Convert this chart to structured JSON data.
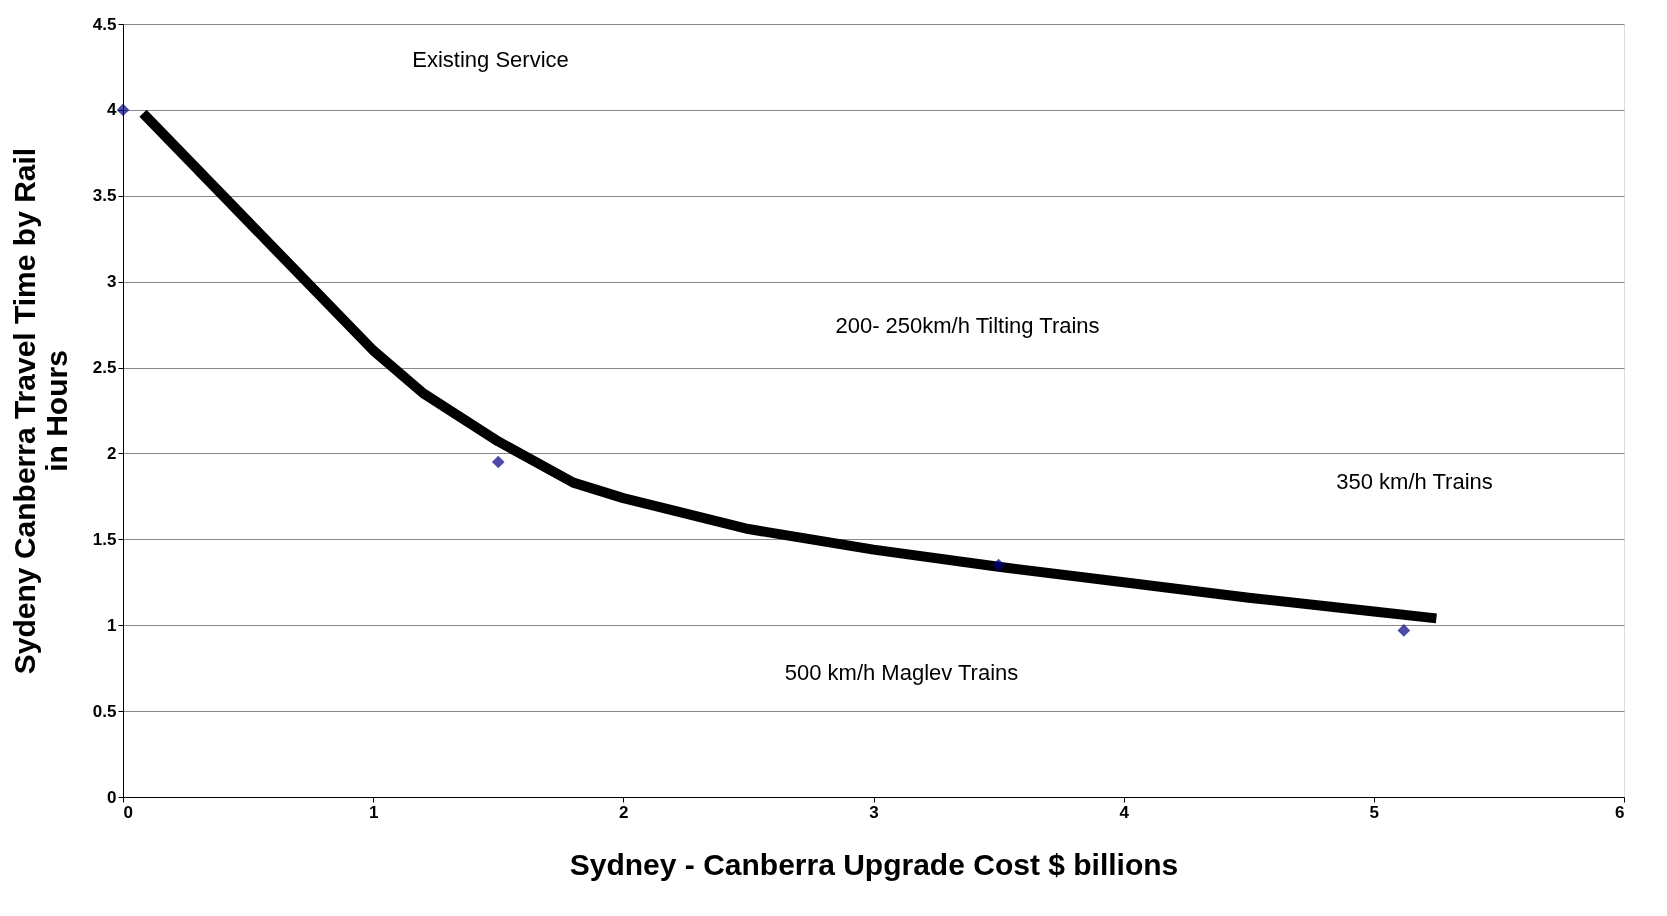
{
  "chart_data": {
    "type": "scatter",
    "xlabel": "Sydney - Canberra Upgrade Cost $ billions",
    "ylabel": "Sydeny Canberra Travel Time by Rail in Hours",
    "x": [
      0,
      1.5,
      3.5,
      5.12
    ],
    "series": [
      {
        "type": "scatter",
        "color": "#000080",
        "marker": "diamond",
        "values": [
          4.0,
          1.95,
          1.35,
          0.97
        ]
      },
      {
        "type": "line",
        "color": "#000000",
        "marker": "none",
        "x": [
          0.08,
          0.5,
          1.0,
          1.2,
          1.5,
          1.8,
          2.0,
          2.5,
          3.0,
          3.5,
          4.0,
          4.5,
          5.0,
          5.25
        ],
        "values": [
          3.98,
          3.35,
          2.6,
          2.35,
          2.07,
          1.83,
          1.74,
          1.56,
          1.44,
          1.34,
          1.25,
          1.16,
          1.08,
          1.04
        ]
      }
    ],
    "xlim": [
      0,
      6
    ],
    "xticks": [
      0,
      1,
      2,
      3,
      4,
      5,
      6
    ],
    "ylim": [
      0,
      4.5
    ],
    "yticks": [
      0,
      0.5,
      1,
      1.5,
      2,
      2.5,
      3,
      3.5,
      4,
      4.5
    ],
    "grid": "y",
    "annotations": [
      "Existing Service",
      "200- 250km/h Tilting Trains",
      "350 km/h Trains",
      "500 km/h Maglev Trains"
    ]
  }
}
